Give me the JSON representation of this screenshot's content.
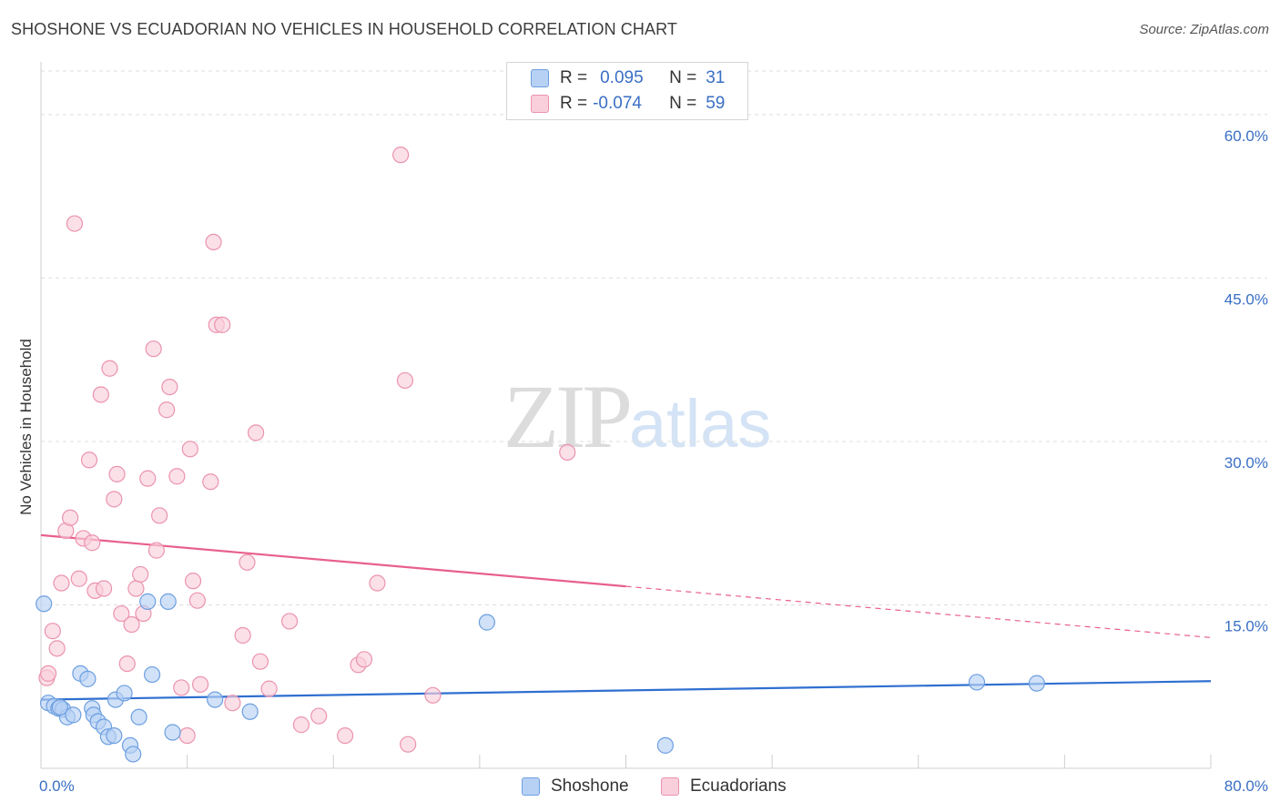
{
  "header": {
    "title": "SHOSHONE VS ECUADORIAN NO VEHICLES IN HOUSEHOLD CORRELATION CHART",
    "source": "Source: ZipAtlas.com"
  },
  "watermark": {
    "zip": "ZIP",
    "atlas": "atlas"
  },
  "legend": {
    "rows": [
      {
        "r_label": "R =",
        "r_value": "0.095",
        "n_label": "N =",
        "n_value": "31"
      },
      {
        "r_label": "R =",
        "r_value": "-0.074",
        "n_label": "N =",
        "n_value": "59"
      }
    ]
  },
  "bottom_legend": {
    "series1": "Shoshone",
    "series2": "Ecuadorians"
  },
  "colors": {
    "blue_fill": "#b7d1f5",
    "blue_stroke": "#6d9fe0",
    "blue_line": "#2f6fd0",
    "pink_fill": "#f9cfdc",
    "pink_stroke": "#eb93ae",
    "pink_line": "#e8608c",
    "grid": "#dedede",
    "axis_text": "#3a6fc4"
  },
  "chart_data": {
    "type": "scatter",
    "title": "SHOSHONE VS ECUADORIAN NO VEHICLES IN HOUSEHOLD CORRELATION CHART",
    "xlabel": "",
    "ylabel": "No Vehicles in Household",
    "xlim": [
      0,
      80
    ],
    "ylim": [
      0,
      64
    ],
    "x_tick_labels": [
      "0.0%",
      "80.0%"
    ],
    "y_ticks": [
      15,
      30,
      45,
      60
    ],
    "y_tick_labels": [
      "15.0%",
      "30.0%",
      "45.0%",
      "60.0%"
    ],
    "grid": true,
    "legend_position": "top-center",
    "series": [
      {
        "name": "Shoshone",
        "r": 0.095,
        "n": 31,
        "trend": {
          "x": [
            0,
            80
          ],
          "y": [
            6.3,
            8.0
          ],
          "dashed_from": null
        },
        "points": [
          [
            0.2,
            15.1
          ],
          [
            0.5,
            6.0
          ],
          [
            0.9,
            5.7
          ],
          [
            1.2,
            5.5
          ],
          [
            1.5,
            5.4
          ],
          [
            1.8,
            4.7
          ],
          [
            2.2,
            4.9
          ],
          [
            2.7,
            8.7
          ],
          [
            3.2,
            8.2
          ],
          [
            3.5,
            5.5
          ],
          [
            3.6,
            4.9
          ],
          [
            3.9,
            4.3
          ],
          [
            4.3,
            3.8
          ],
          [
            4.6,
            2.9
          ],
          [
            5.0,
            3.0
          ],
          [
            5.1,
            6.3
          ],
          [
            5.7,
            6.9
          ],
          [
            6.1,
            2.1
          ],
          [
            6.3,
            1.3
          ],
          [
            6.7,
            4.7
          ],
          [
            7.6,
            8.6
          ],
          [
            8.7,
            15.3
          ],
          [
            9.0,
            3.3
          ],
          [
            11.9,
            6.3
          ],
          [
            14.3,
            5.2
          ],
          [
            7.3,
            15.3
          ],
          [
            30.5,
            13.4
          ],
          [
            42.7,
            2.1
          ],
          [
            64.0,
            7.9
          ],
          [
            68.1,
            7.8
          ],
          [
            1.3,
            5.6
          ]
        ]
      },
      {
        "name": "Ecuadorians",
        "r": -0.074,
        "n": 59,
        "trend": {
          "x": [
            0,
            80
          ],
          "y": [
            21.4,
            12.0
          ],
          "dashed_from": 40
        },
        "points": [
          [
            0.4,
            8.3
          ],
          [
            0.5,
            8.7
          ],
          [
            0.8,
            12.6
          ],
          [
            1.1,
            11.0
          ],
          [
            1.4,
            17.0
          ],
          [
            1.7,
            21.8
          ],
          [
            2.0,
            23.0
          ],
          [
            2.3,
            50.0
          ],
          [
            2.6,
            17.4
          ],
          [
            2.9,
            21.1
          ],
          [
            3.3,
            28.3
          ],
          [
            3.5,
            20.7
          ],
          [
            3.7,
            16.3
          ],
          [
            4.1,
            34.3
          ],
          [
            4.3,
            16.5
          ],
          [
            4.7,
            36.7
          ],
          [
            5.0,
            24.7
          ],
          [
            5.2,
            27.0
          ],
          [
            5.5,
            14.2
          ],
          [
            5.9,
            9.6
          ],
          [
            6.2,
            13.2
          ],
          [
            6.5,
            16.5
          ],
          [
            6.8,
            17.8
          ],
          [
            7.0,
            14.2
          ],
          [
            7.3,
            26.6
          ],
          [
            7.7,
            38.5
          ],
          [
            7.9,
            20.0
          ],
          [
            8.1,
            23.2
          ],
          [
            8.6,
            32.9
          ],
          [
            8.8,
            35.0
          ],
          [
            9.3,
            26.8
          ],
          [
            9.6,
            7.4
          ],
          [
            10.0,
            3.0
          ],
          [
            10.2,
            29.3
          ],
          [
            10.4,
            17.2
          ],
          [
            10.7,
            15.4
          ],
          [
            10.9,
            7.7
          ],
          [
            11.6,
            26.3
          ],
          [
            11.8,
            48.3
          ],
          [
            12.0,
            40.7
          ],
          [
            12.4,
            40.7
          ],
          [
            13.1,
            6.0
          ],
          [
            13.8,
            12.2
          ],
          [
            14.1,
            18.9
          ],
          [
            14.7,
            30.8
          ],
          [
            15.0,
            9.8
          ],
          [
            15.6,
            7.3
          ],
          [
            17.0,
            13.5
          ],
          [
            17.8,
            4.0
          ],
          [
            19.0,
            4.8
          ],
          [
            20.8,
            3.0
          ],
          [
            21.7,
            9.5
          ],
          [
            22.1,
            10.0
          ],
          [
            23.0,
            17.0
          ],
          [
            24.6,
            56.3
          ],
          [
            24.9,
            35.6
          ],
          [
            25.1,
            2.2
          ],
          [
            26.8,
            6.7
          ],
          [
            36.0,
            29.0
          ]
        ]
      }
    ]
  }
}
